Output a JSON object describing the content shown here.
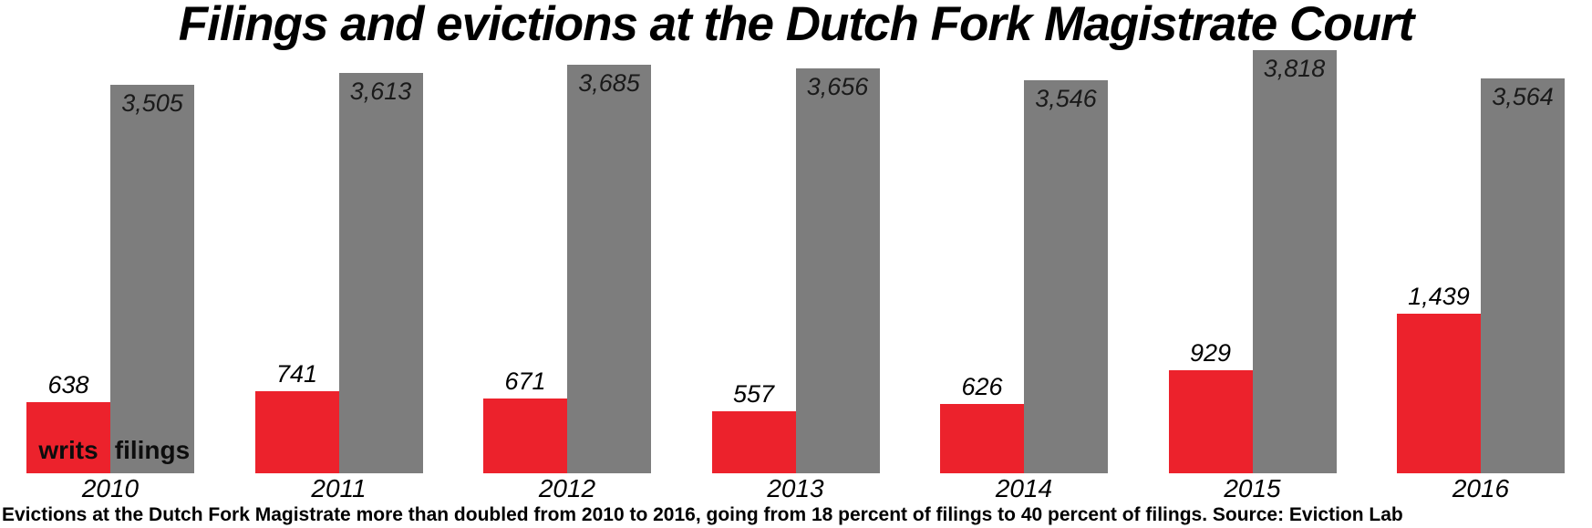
{
  "title": "Filings and evictions at the Dutch Fork Magistrate Court",
  "caption": "Evictions at the Dutch Fork Magistrate more than doubled from 2010 to 2016, going from 18 percent of filings to 40 percent of filings. Source: Eviction Lab",
  "legend": {
    "writs": "writs",
    "filings": "filings"
  },
  "colors": {
    "writs_bar": "#ec222c",
    "filings_bar": "#7d7d7d",
    "label_text": "#000000"
  },
  "chart_data": {
    "type": "bar",
    "title": "Filings and evictions at the Dutch Fork Magistrate Court",
    "xlabel": "",
    "ylabel": "",
    "categories": [
      "2010",
      "2011",
      "2012",
      "2013",
      "2014",
      "2015",
      "2016"
    ],
    "series": [
      {
        "name": "writs",
        "color": "#ec222c",
        "values": [
          638,
          741,
          671,
          557,
          626,
          929,
          1439
        ],
        "labels": [
          "638",
          "741",
          "671",
          "557",
          "626",
          "929",
          "1,439"
        ],
        "value_label_position": "above-bar"
      },
      {
        "name": "filings",
        "color": "#7d7d7d",
        "values": [
          3505,
          3613,
          3685,
          3656,
          3546,
          3818,
          3564
        ],
        "labels": [
          "3,505",
          "3,613",
          "3,685",
          "3,656",
          "3,546",
          "3,818",
          "3,564"
        ],
        "value_label_position": "inside-bar-top"
      }
    ],
    "ylim": [
      0,
      3818
    ],
    "grid": false,
    "legend_position": "inside-first-bar-pair-bottom"
  }
}
